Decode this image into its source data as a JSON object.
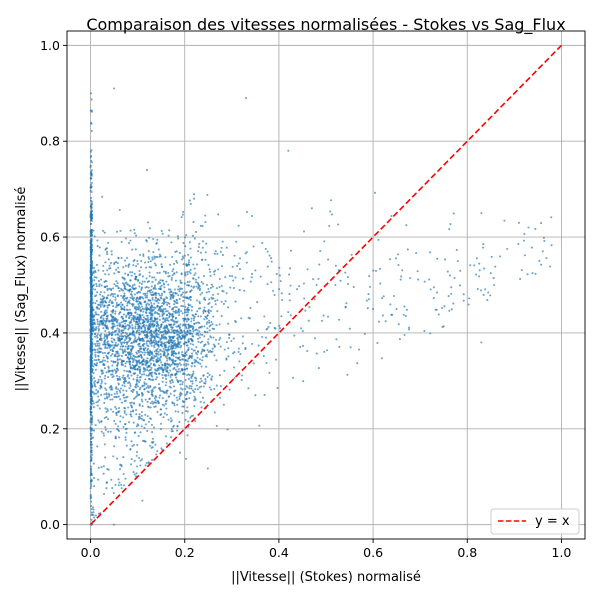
{
  "chart_data": {
    "type": "scatter",
    "title": "Comparaison des vitesses normalisées - Stokes vs Sag_Flux",
    "xlabel": "||Vitesse|| (Stokes) normalisé",
    "ylabel": "||Vitesse|| (Sag_Flux) normalisé",
    "xlim": [
      -0.05,
      1.05
    ],
    "ylim": [
      -0.03,
      1.03
    ],
    "xticks": [
      "0.0",
      "0.2",
      "0.4",
      "0.6",
      "0.8",
      "1.0"
    ],
    "yticks": [
      "0.0",
      "0.2",
      "0.4",
      "0.6",
      "0.8",
      "1.0"
    ],
    "grid": true,
    "legend_position": "bottom-right",
    "series": [
      {
        "type": "scatter",
        "color": "#1f77b4",
        "approx_point_count": 4000,
        "x_at_zero_range": [
          0.0,
          0.9
        ],
        "cluster_center": [
          0.12,
          0.4
        ],
        "sample_points": [
          [
            0.05,
            0.91
          ],
          [
            0.33,
            0.89
          ],
          [
            0.42,
            0.78
          ],
          [
            0.12,
            0.74
          ],
          [
            0.93,
            0.62
          ],
          [
            0.83,
            0.65
          ],
          [
            0.78,
            0.55
          ],
          [
            0.83,
            0.38
          ],
          [
            0.47,
            0.66
          ],
          [
            0.22,
            0.68
          ],
          [
            0.05,
            0.0
          ],
          [
            0.11,
            0.05
          ],
          [
            0.19,
            0.15
          ],
          [
            0.16,
            0.35
          ],
          [
            0.1,
            0.45
          ],
          [
            0.35,
            0.27
          ],
          [
            0.6,
            0.45
          ],
          [
            0.52,
            0.5
          ]
        ]
      },
      {
        "name": "y = x",
        "type": "line",
        "style": "dashed",
        "color": "#ff0000",
        "x": [
          0,
          1
        ],
        "y": [
          0,
          1
        ]
      }
    ]
  }
}
